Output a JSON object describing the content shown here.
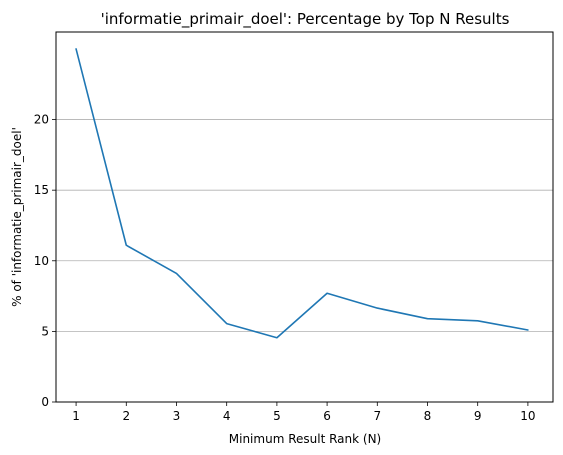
{
  "chart_data": {
    "type": "line",
    "title": "'informatie_primair_doel': Percentage by Top N Results",
    "xlabel": "Minimum Result Rank (N)",
    "ylabel": "% of 'informatie_primair_doel'",
    "x": [
      1,
      2,
      3,
      4,
      5,
      6,
      7,
      8,
      9,
      10
    ],
    "series": [
      {
        "values": [
          25.0,
          11.1,
          9.1,
          5.55,
          4.55,
          7.7,
          6.65,
          5.9,
          5.75,
          5.1
        ],
        "color": "#1f77b4"
      }
    ],
    "xlim": [
      0.6,
      10.5
    ],
    "ylim": [
      0,
      26.2
    ],
    "xticks": [
      1,
      2,
      3,
      4,
      5,
      6,
      7,
      8,
      9,
      10
    ],
    "yticks": [
      0,
      5,
      10,
      15,
      20
    ],
    "grid": "horizontal",
    "legend": "none"
  }
}
